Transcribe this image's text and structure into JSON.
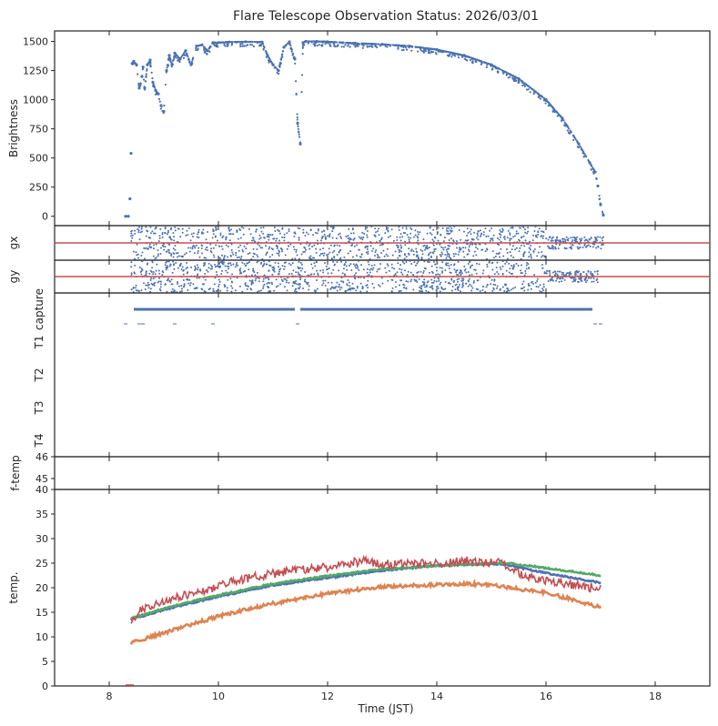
{
  "chart_data": {
    "title": "Flare Telescope Observation Status: 2026/03/01",
    "xlabel": "Time (JST)",
    "xlim": [
      7,
      19
    ],
    "xticks": [
      8,
      10,
      12,
      14,
      16,
      18
    ],
    "colors": {
      "blue": "#4c72b0",
      "orange": "#dd8452",
      "green": "#55a868",
      "red": "#c44e52",
      "axis": "#262626"
    },
    "panels": [
      {
        "id": "brightness",
        "type": "scatter",
        "ylabel": "Brightness",
        "ylim": [
          -80,
          1590
        ],
        "yticks": [
          0,
          250,
          500,
          750,
          1000,
          1250,
          1500
        ],
        "series": [
          {
            "color": "blue",
            "x": [
              8.3,
              8.35,
              8.38,
              8.4,
              8.42,
              8.45,
              8.5,
              8.55,
              8.6,
              8.62,
              8.65,
              8.7,
              8.75,
              8.8,
              8.85,
              8.9,
              8.95,
              9.0,
              9.05,
              9.1,
              9.15,
              9.2,
              9.3,
              9.4,
              9.5,
              9.6,
              9.7,
              9.8,
              9.9,
              10.0,
              10.2,
              10.5,
              10.8,
              10.9,
              11.0,
              11.1,
              11.2,
              11.3,
              11.4,
              11.45,
              11.5,
              11.55,
              11.6,
              11.8,
              12.0,
              12.5,
              13.0,
              13.5,
              14.0,
              14.5,
              15.0,
              15.5,
              16.0,
              16.3,
              16.6,
              16.8,
              16.9,
              16.95,
              17.0,
              17.05
            ],
            "y": [
              0,
              0,
              150,
              540,
              1310,
              1330,
              1300,
              1100,
              1200,
              1280,
              1100,
              1300,
              1340,
              1150,
              1080,
              1050,
              950,
              900,
              1250,
              1380,
              1300,
              1400,
              1350,
              1420,
              1300,
              1460,
              1470,
              1420,
              1490,
              1490,
              1495,
              1497,
              1495,
              1380,
              1300,
              1250,
              1450,
              1497,
              1350,
              800,
              620,
              1490,
              1500,
              1500,
              1497,
              1485,
              1475,
              1460,
              1430,
              1380,
              1300,
              1180,
              1000,
              840,
              620,
              460,
              380,
              260,
              100,
              10
            ]
          }
        ]
      },
      {
        "id": "gx",
        "type": "scatter",
        "ylabel": "gx",
        "ylim": [
          -1,
          1
        ],
        "reference_line": {
          "y": 0,
          "color": "red"
        },
        "x_range": [
          8.4,
          17.05
        ],
        "series": [
          {
            "color": "blue",
            "x": [
              8.4,
              9.0,
              10.0,
              11.0,
              12.0,
              13.0,
              14.0,
              15.0,
              16.0,
              16.9,
              17.05
            ],
            "y": [
              0.5,
              -0.4,
              0.6,
              -0.5,
              0.45,
              -0.6,
              0.5,
              -0.4,
              0.3,
              -0.1,
              0.8
            ]
          }
        ]
      },
      {
        "id": "gy",
        "type": "scatter",
        "ylabel": "gy",
        "ylim": [
          -1,
          1
        ],
        "reference_line": {
          "y": 0,
          "color": "red"
        },
        "x_range": [
          8.4,
          16.95
        ],
        "series": [
          {
            "color": "blue",
            "x": [
              8.4,
              9.0,
              10.0,
              11.0,
              12.0,
              13.0,
              14.0,
              15.0,
              16.0,
              16.9
            ],
            "y": [
              -0.5,
              0.4,
              -0.6,
              0.5,
              -0.45,
              0.6,
              -0.5,
              0.4,
              -0.3,
              0.1
            ]
          }
        ]
      },
      {
        "id": "status",
        "type": "timeline",
        "ylabels": [
          "capture",
          "T1",
          "T2",
          "T3",
          "T4"
        ],
        "capture_spans": [
          [
            8.45,
            11.4
          ],
          [
            11.5,
            16.85
          ]
        ],
        "capture_ticks": [
          8.3,
          8.55,
          8.62,
          9.2,
          9.9,
          11.45,
          16.9,
          17.0
        ]
      },
      {
        "id": "f-temp",
        "type": "line",
        "ylabel": "f-temp",
        "ylim": [
          44.5,
          46
        ],
        "yticks": [
          45,
          46
        ],
        "series": []
      },
      {
        "id": "temp",
        "type": "line",
        "ylabel": "temp.",
        "ylim": [
          0,
          40
        ],
        "yticks": [
          0,
          5,
          10,
          15,
          20,
          25,
          30,
          35,
          40
        ],
        "series": [
          {
            "color": "blue",
            "x": [
              8.4,
              9,
              10,
              11,
              12,
              13,
              14,
              15,
              15.2,
              16,
              17
            ],
            "y": [
              13.5,
              15.5,
              18.2,
              20.5,
              22.0,
              23.5,
              24.5,
              24.8,
              24.8,
              23.0,
              21.0
            ]
          },
          {
            "color": "orange",
            "x": [
              8.4,
              9,
              10,
              11,
              12,
              13,
              14,
              14.6,
              15,
              16,
              17
            ],
            "y": [
              8.8,
              10.8,
              14.2,
              16.8,
              18.8,
              20.2,
              20.6,
              20.8,
              20.5,
              19.0,
              16.0
            ]
          },
          {
            "color": "green",
            "x": [
              8.4,
              9,
              10,
              11,
              12,
              13,
              14,
              15,
              15.3,
              16,
              17
            ],
            "y": [
              13.7,
              15.8,
              18.5,
              20.8,
              22.4,
              23.8,
              24.5,
              25.0,
              25.0,
              24.0,
              22.5
            ]
          },
          {
            "color": "red",
            "x": [
              8.4,
              8.6,
              9,
              9.5,
              10,
              10.3,
              10.8,
              11.3,
              12,
              12.6,
              13.2,
              14,
              14.6,
              15.2,
              15.5,
              16,
              16.5,
              17
            ],
            "y": [
              13.6,
              15.5,
              17.3,
              18.8,
              20.2,
              21.5,
              22.4,
              23.4,
              24.2,
              25.4,
              24.8,
              25.0,
              25.5,
              25.0,
              23.0,
              21.5,
              20.5,
              19.8
            ]
          }
        ]
      }
    ]
  }
}
